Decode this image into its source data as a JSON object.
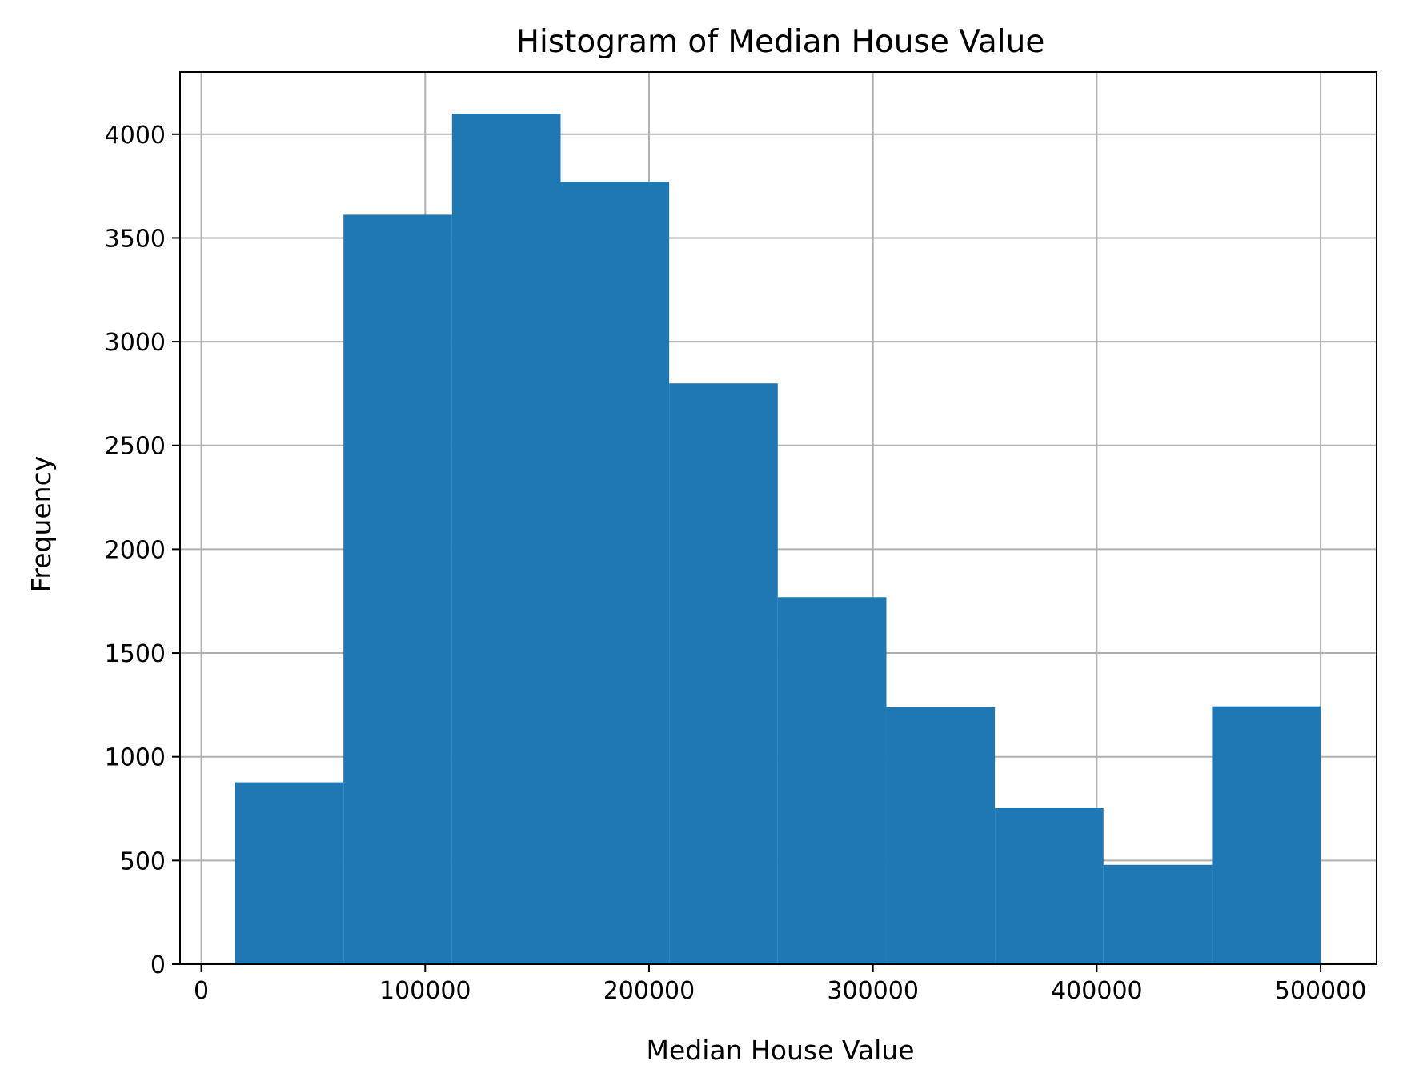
{
  "chart_data": {
    "type": "bar",
    "title": "Histogram of Median House Value",
    "xlabel": "Median House Value",
    "ylabel": "Frequency",
    "xlim": [
      -9500,
      525000
    ],
    "ylim": [
      0,
      4300
    ],
    "grid": true,
    "bar_color": "#1f77b4",
    "bin_edges": [
      14999,
      63500,
      112000,
      160500,
      209000,
      257500,
      306000,
      354500,
      403000,
      451500,
      500001
    ],
    "values": [
      877,
      3612,
      4099,
      3771,
      2799,
      1769,
      1239,
      752,
      479,
      1243
    ],
    "xticks": [
      {
        "value": 0,
        "label": "0"
      },
      {
        "value": 100000,
        "label": "100000"
      },
      {
        "value": 200000,
        "label": "200000"
      },
      {
        "value": 300000,
        "label": "300000"
      },
      {
        "value": 400000,
        "label": "400000"
      },
      {
        "value": 500000,
        "label": "500000"
      }
    ],
    "yticks": [
      {
        "value": 0,
        "label": "0"
      },
      {
        "value": 500,
        "label": "500"
      },
      {
        "value": 1000,
        "label": "1000"
      },
      {
        "value": 1500,
        "label": "1500"
      },
      {
        "value": 2000,
        "label": "2000"
      },
      {
        "value": 2500,
        "label": "2500"
      },
      {
        "value": 3000,
        "label": "3000"
      },
      {
        "value": 3500,
        "label": "3500"
      },
      {
        "value": 4000,
        "label": "4000"
      }
    ]
  }
}
